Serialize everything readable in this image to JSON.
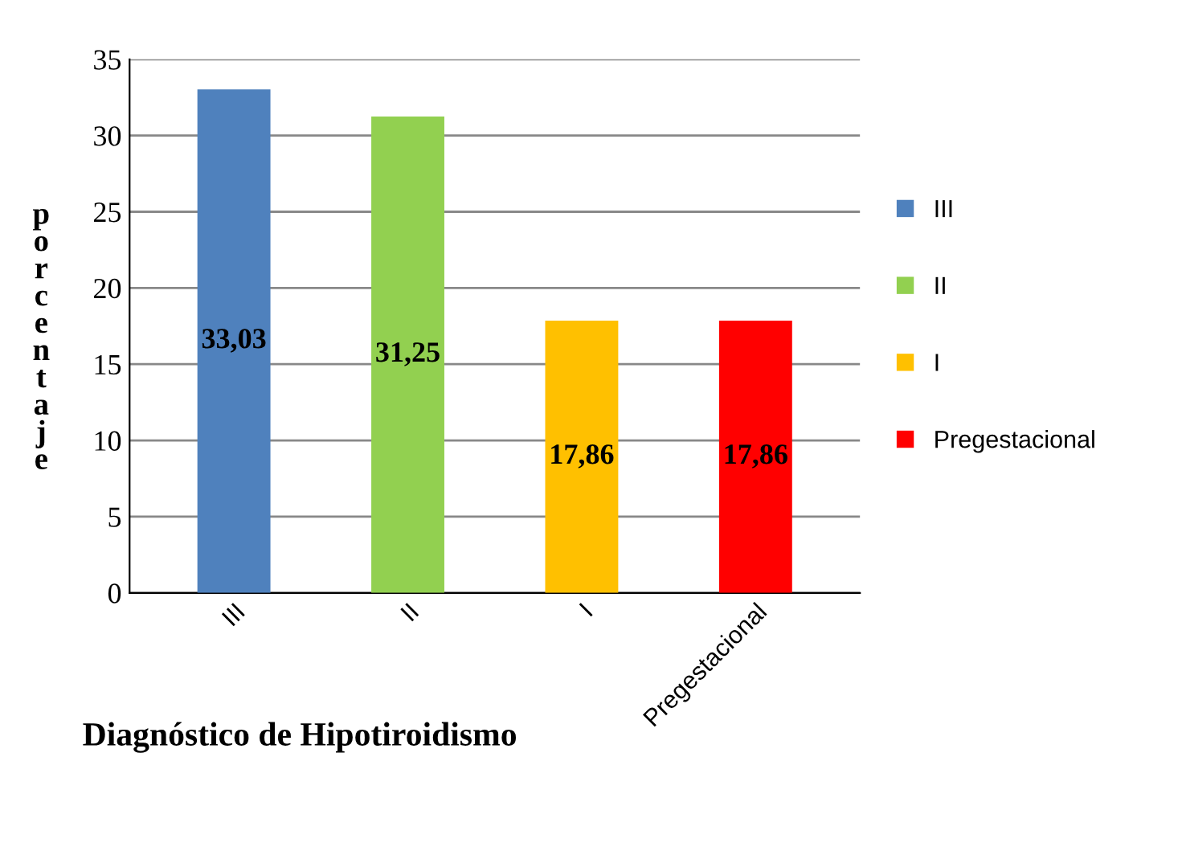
{
  "chart_data": {
    "type": "bar",
    "categories": [
      "III",
      "II",
      "I",
      "Pregestacional"
    ],
    "series": [
      {
        "name": "III",
        "color": "#4f81bd",
        "values": [
          33.03,
          null,
          null,
          null
        ],
        "value_labels": [
          "33,03",
          null,
          null,
          null
        ]
      },
      {
        "name": "II",
        "color": "#92d050",
        "values": [
          null,
          31.25,
          null,
          null
        ],
        "value_labels": [
          null,
          "31,25",
          null,
          null
        ]
      },
      {
        "name": "I",
        "color": "#ffc000",
        "values": [
          null,
          null,
          17.86,
          null
        ],
        "value_labels": [
          null,
          null,
          "17,86",
          null
        ]
      },
      {
        "name": "Pregestacional",
        "color": "#ff0000",
        "values": [
          null,
          null,
          null,
          17.86
        ],
        "value_labels": [
          null,
          null,
          null,
          "17,86"
        ]
      }
    ],
    "xlabel": "Diagnóstico de Hipotiroidismo",
    "ylabel": "porcentaje",
    "ylim": [
      0,
      35
    ],
    "yticks": [
      0,
      5,
      10,
      15,
      20,
      25,
      30,
      35
    ],
    "grid": "y",
    "legend": "right"
  }
}
